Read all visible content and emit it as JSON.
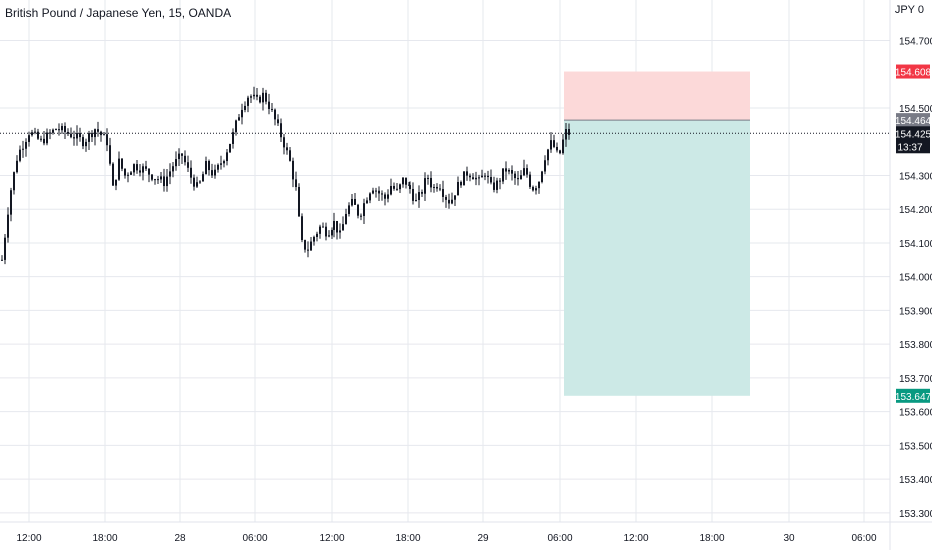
{
  "header": {
    "title": "British Pound / Japanese Yen, 15, OANDA",
    "currency": "JPY",
    "currency_badge": "0"
  },
  "colors": {
    "candle": "#131722",
    "grid": "#e6e8ee",
    "stop_zone": "#fcd9d9",
    "target_zone": "#cce9e6",
    "stop_badge": "#f23645",
    "target_badge": "#089981",
    "price_badge": "#131722",
    "entry_badge": "#787b86"
  },
  "chart_data": {
    "type": "candlestick",
    "title": "British Pound / Japanese Yen, 15, OANDA",
    "ylim": [
      153.27,
      154.82
    ],
    "y_ticks": [
      "154.700",
      "154.500",
      "154.300",
      "154.200",
      "154.100",
      "154.000",
      "153.900",
      "153.800",
      "153.700",
      "153.600",
      "153.500",
      "153.400",
      "153.300"
    ],
    "x_ticks": [
      "12:00",
      "18:00",
      "28",
      "06:00",
      "12:00",
      "18:00",
      "29",
      "06:00",
      "12:00",
      "18:00",
      "30",
      "06:00"
    ],
    "series": [
      {
        "segments": [
          {
            "from": "12:00",
            "to": "18:00",
            "points": [
              [
                0,
                154.05
              ],
              [
                4,
                154.24
              ],
              [
                8,
                154.36
              ],
              [
                14,
                154.43
              ],
              [
                20,
                154.4
              ],
              [
                28,
                154.44
              ],
              [
                36,
                154.42
              ],
              [
                42,
                154.4
              ],
              [
                48,
                154.44
              ],
              [
                54,
                154.4
              ]
            ]
          },
          {
            "from": "18:00",
            "to": "28",
            "points": [
              [
                0,
                154.4
              ],
              [
                4,
                154.26
              ],
              [
                8,
                154.34
              ],
              [
                12,
                154.3
              ],
              [
                18,
                154.33
              ],
              [
                24,
                154.32
              ],
              [
                30,
                154.3
              ],
              [
                38,
                154.28
              ],
              [
                44,
                154.33
              ],
              [
                50,
                154.36
              ]
            ]
          },
          {
            "from": "28",
            "to": "06:00",
            "points": [
              [
                0,
                154.36
              ],
              [
                6,
                154.3
              ],
              [
                12,
                154.26
              ],
              [
                18,
                154.33
              ],
              [
                24,
                154.3
              ],
              [
                32,
                154.36
              ],
              [
                38,
                154.42
              ],
              [
                44,
                154.5
              ],
              [
                50,
                154.54
              ],
              [
                56,
                154.52
              ]
            ]
          },
          {
            "from": "06:00",
            "to": "12:00",
            "points": [
              [
                0,
                154.52
              ],
              [
                6,
                154.54
              ],
              [
                12,
                154.5
              ],
              [
                18,
                154.45
              ],
              [
                24,
                154.4
              ],
              [
                30,
                154.34
              ],
              [
                36,
                154.25
              ],
              [
                40,
                154.1
              ],
              [
                46,
                154.08
              ],
              [
                52,
                154.12
              ],
              [
                58,
                154.15
              ],
              [
                64,
                154.13
              ],
              [
                70,
                154.16
              ]
            ]
          },
          {
            "from": "12:00",
            "to": "18:00",
            "points": [
              [
                0,
                154.16
              ],
              [
                6,
                154.12
              ],
              [
                12,
                154.2
              ],
              [
                18,
                154.22
              ],
              [
                24,
                154.18
              ],
              [
                30,
                154.23
              ],
              [
                36,
                154.27
              ],
              [
                42,
                154.25
              ],
              [
                48,
                154.23
              ],
              [
                54,
                154.27
              ],
              [
                60,
                154.25
              ],
              [
                66,
                154.29
              ],
              [
                72,
                154.26
              ]
            ]
          },
          {
            "from": "18:00",
            "to": "29",
            "points": [
              [
                0,
                154.26
              ],
              [
                6,
                154.22
              ],
              [
                12,
                154.25
              ],
              [
                18,
                154.3
              ],
              [
                24,
                154.26
              ],
              [
                30,
                154.28
              ],
              [
                36,
                154.24
              ],
              [
                42,
                154.22
              ],
              [
                48,
                154.26
              ],
              [
                54,
                154.29
              ],
              [
                60,
                154.31
              ],
              [
                66,
                154.3
              ],
              [
                72,
                154.28
              ],
              [
                78,
                154.31
              ]
            ]
          },
          {
            "from": "29",
            "to": "06:00",
            "points": [
              [
                0,
                154.31
              ],
              [
                6,
                154.26
              ],
              [
                12,
                154.28
              ],
              [
                18,
                154.32
              ],
              [
                24,
                154.3
              ],
              [
                30,
                154.28
              ],
              [
                36,
                154.32
              ],
              [
                42,
                154.26
              ],
              [
                48,
                154.28
              ],
              [
                54,
                154.36
              ],
              [
                60,
                154.4
              ],
              [
                66,
                154.35
              ],
              [
                72,
                154.43
              ],
              [
                78,
                154.42
              ]
            ]
          }
        ],
        "last_close": 154.425
      }
    ],
    "position": {
      "type": "short",
      "entry": 154.464,
      "stop": 154.608,
      "target": 153.647,
      "start_x": "06:00",
      "end_x": "18:00+"
    },
    "price_labels": {
      "stop": "154.608",
      "entry": "154.464",
      "last": "154.425",
      "countdown": "13:37",
      "target": "153.647"
    }
  }
}
